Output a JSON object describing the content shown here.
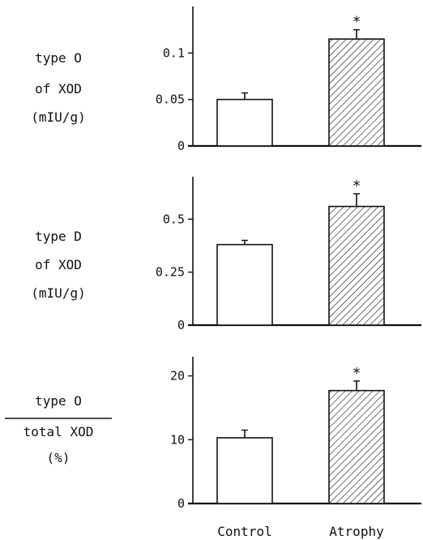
{
  "colors": {
    "ink": "#111111",
    "background": "#ffffff"
  },
  "chart_data": [
    {
      "type": "bar",
      "ylabel_lines": [
        "type O",
        "of XOD",
        "(mIU/g)"
      ],
      "ylabel_fraction": false,
      "categories": [
        "Control",
        "Atrophy"
      ],
      "values": [
        0.05,
        0.115
      ],
      "errors": [
        0.007,
        0.01
      ],
      "significance": [
        "",
        "*"
      ],
      "bar_fill": [
        "open",
        "hatched"
      ],
      "ylim": [
        0,
        0.15
      ],
      "yticks": [
        0,
        0.05,
        0.1
      ],
      "ytick_labels": [
        "0",
        "0.05",
        "0.1"
      ]
    },
    {
      "type": "bar",
      "ylabel_lines": [
        "type D",
        "of XOD",
        "(mIU/g)"
      ],
      "ylabel_fraction": false,
      "categories": [
        "Control",
        "Atrophy"
      ],
      "values": [
        0.38,
        0.56
      ],
      "errors": [
        0.02,
        0.06
      ],
      "significance": [
        "",
        "*"
      ],
      "bar_fill": [
        "open",
        "hatched"
      ],
      "ylim": [
        0,
        0.7
      ],
      "yticks": [
        0,
        0.25,
        0.5
      ],
      "ytick_labels": [
        "0",
        "0.25",
        "0.5"
      ]
    },
    {
      "type": "bar",
      "ylabel_lines": [
        "type O",
        "total XOD",
        "(%)"
      ],
      "ylabel_fraction": true,
      "categories": [
        "Control",
        "Atrophy"
      ],
      "values": [
        10.3,
        17.7
      ],
      "errors": [
        1.2,
        1.5
      ],
      "significance": [
        "",
        "*"
      ],
      "bar_fill": [
        "open",
        "hatched"
      ],
      "ylim": [
        0,
        23
      ],
      "yticks": [
        0,
        10,
        20
      ],
      "ytick_labels": [
        "0",
        "10",
        "20"
      ]
    }
  ],
  "x_axis": {
    "category_labels": [
      "Control",
      "Atrophy"
    ]
  }
}
